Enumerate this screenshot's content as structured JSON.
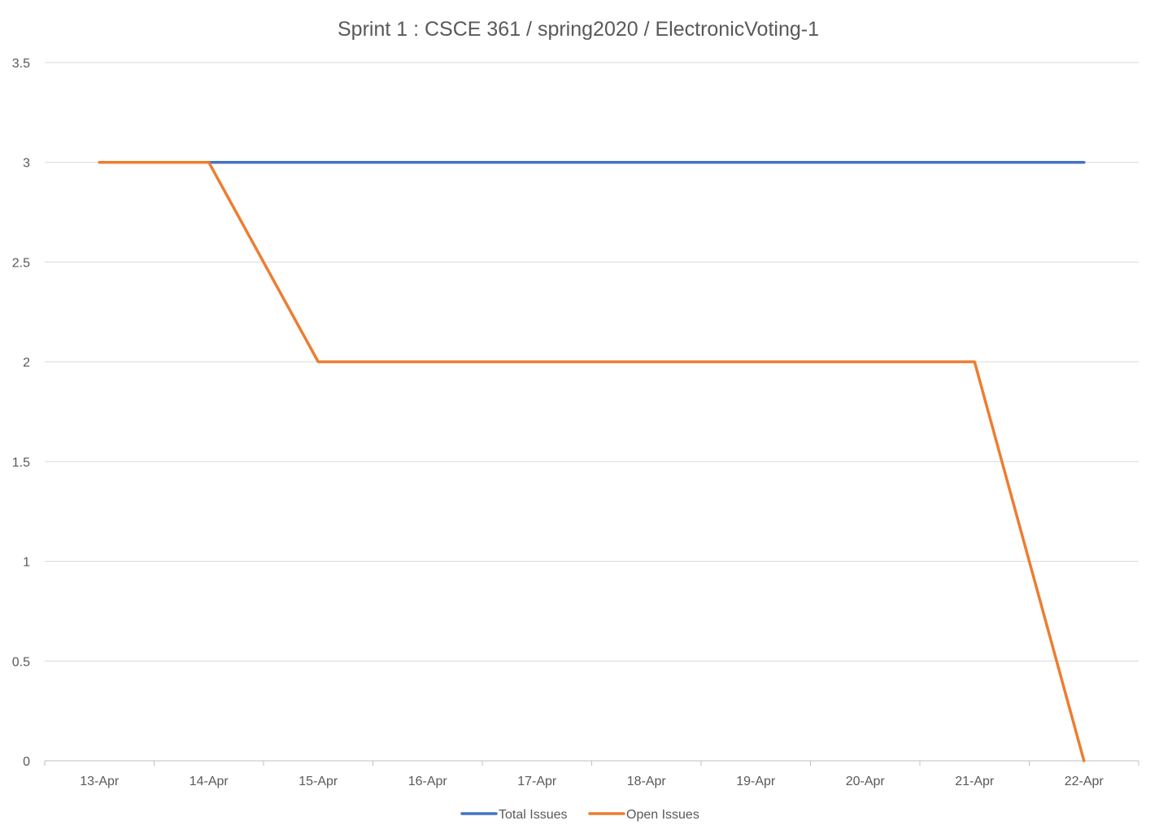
{
  "chart_data": {
    "type": "line",
    "title": "Sprint 1 : CSCE 361 / spring2020 / ElectronicVoting-1",
    "xlabel": "",
    "ylabel": "",
    "categories": [
      "13-Apr",
      "14-Apr",
      "15-Apr",
      "16-Apr",
      "17-Apr",
      "18-Apr",
      "19-Apr",
      "20-Apr",
      "21-Apr",
      "22-Apr"
    ],
    "ylim": [
      0,
      3.5
    ],
    "yticks": [
      "0",
      "0.5",
      "1",
      "1.5",
      "2",
      "2.5",
      "3",
      "3.5"
    ],
    "grid": "horizontal",
    "legend_position": "bottom",
    "series": [
      {
        "name": "Total Issues",
        "color": "#4472c4",
        "values": [
          3,
          3,
          3,
          3,
          3,
          3,
          3,
          3,
          3,
          3
        ]
      },
      {
        "name": "Open Issues",
        "color": "#ed7d31",
        "values": [
          3,
          3,
          2,
          2,
          2,
          2,
          2,
          2,
          2,
          0
        ]
      }
    ]
  }
}
